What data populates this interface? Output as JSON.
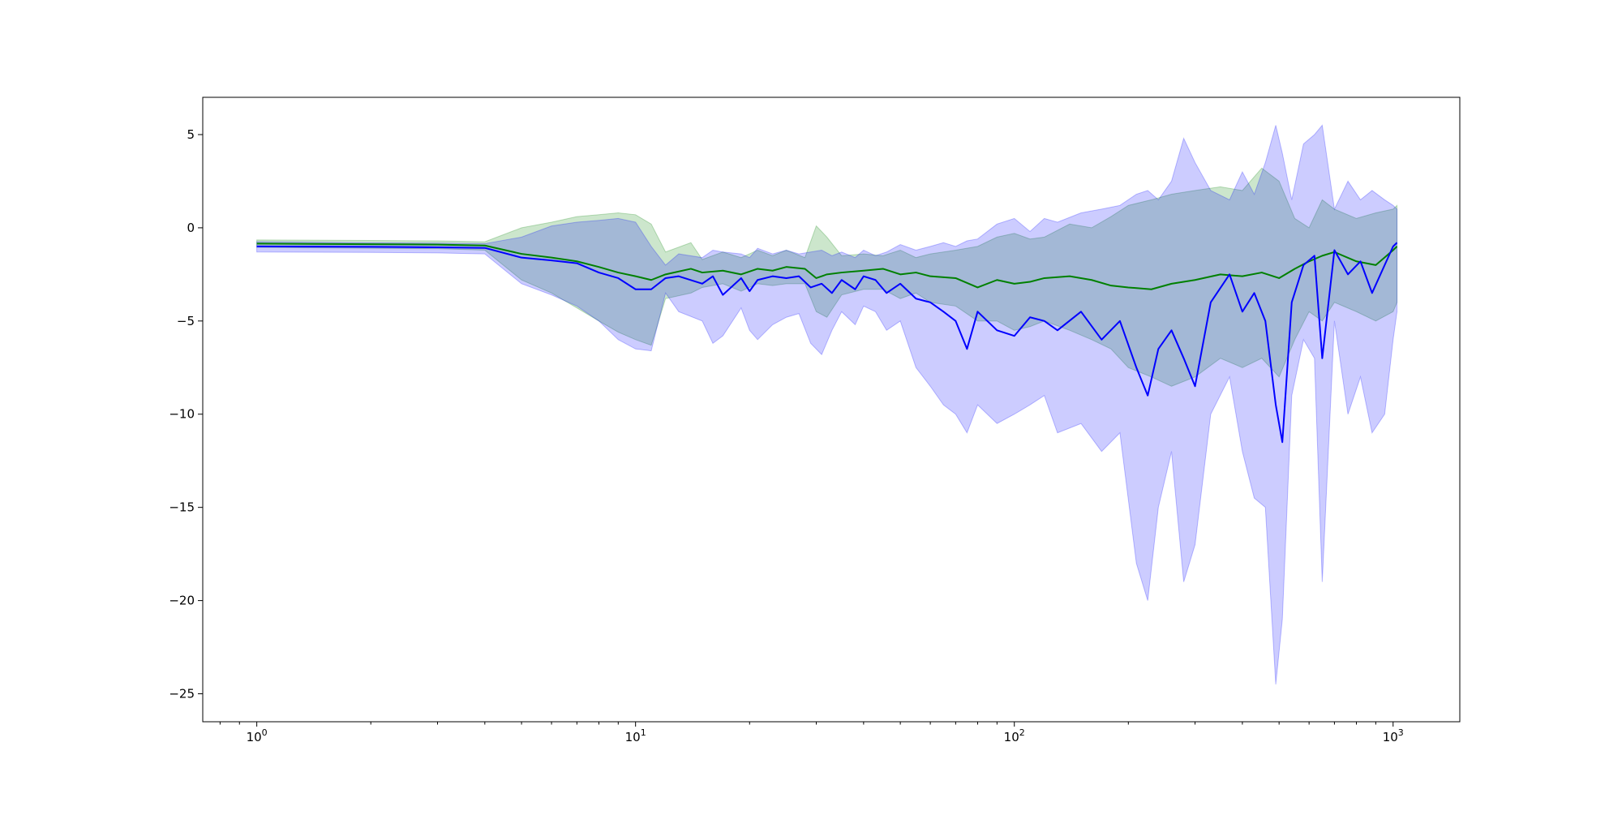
{
  "chart_data": {
    "type": "line",
    "title": "",
    "xlabel": "",
    "ylabel": "",
    "xscale": "log",
    "xlim": [
      0.72,
      1500
    ],
    "ylim": [
      -26.5,
      7
    ],
    "grid": false,
    "legend": "none",
    "x_ticks": [
      {
        "value": 1,
        "base": "10",
        "exp": "0"
      },
      {
        "value": 10,
        "base": "10",
        "exp": "1"
      },
      {
        "value": 100,
        "base": "10",
        "exp": "2"
      },
      {
        "value": 1000,
        "base": "10",
        "exp": "3"
      }
    ],
    "y_ticks": [
      {
        "value": 5,
        "label": "5"
      },
      {
        "value": 0,
        "label": "0"
      },
      {
        "value": -5,
        "label": "−5"
      },
      {
        "value": -10,
        "label": "−10"
      },
      {
        "value": -15,
        "label": "−15"
      },
      {
        "value": -20,
        "label": "−20"
      },
      {
        "value": -25,
        "label": "−25"
      }
    ],
    "series": [
      {
        "color": "#008000",
        "band_color": "#008000",
        "band_opacity": 0.2,
        "points": [
          [
            1,
            -0.85,
            -0.65,
            -1.05
          ],
          [
            2,
            -0.88,
            -0.68,
            -1.1
          ],
          [
            3,
            -0.9,
            -0.7,
            -1.12
          ],
          [
            4,
            -0.95,
            -0.75,
            -1.2
          ],
          [
            5,
            -1.4,
            0.0,
            -2.8
          ],
          [
            6,
            -1.6,
            0.3,
            -3.5
          ],
          [
            7,
            -1.8,
            0.6,
            -4.3
          ],
          [
            8,
            -2.1,
            0.7,
            -5.0
          ],
          [
            9,
            -2.4,
            0.8,
            -5.6
          ],
          [
            10,
            -2.6,
            0.7,
            -6.0
          ],
          [
            11,
            -2.8,
            0.2,
            -6.3
          ],
          [
            12,
            -2.5,
            -1.3,
            -3.8
          ],
          [
            14,
            -2.2,
            -0.8,
            -3.5
          ],
          [
            15,
            -2.4,
            -1.7,
            -3.2
          ],
          [
            17,
            -2.3,
            -1.3,
            -3.0
          ],
          [
            19,
            -2.5,
            -1.6,
            -3.4
          ],
          [
            21,
            -2.2,
            -1.2,
            -3.0
          ],
          [
            23,
            -2.3,
            -1.5,
            -3.1
          ],
          [
            25,
            -2.1,
            -1.2,
            -3.0
          ],
          [
            28,
            -2.2,
            -1.6,
            -3.0
          ],
          [
            30,
            -2.7,
            0.1,
            -4.5
          ],
          [
            32,
            -2.5,
            -0.5,
            -4.8
          ],
          [
            35,
            -2.4,
            -1.5,
            -3.6
          ],
          [
            40,
            -2.3,
            -1.4,
            -3.3
          ],
          [
            45,
            -2.2,
            -1.5,
            -3.3
          ],
          [
            50,
            -2.5,
            -1.2,
            -3.8
          ],
          [
            55,
            -2.4,
            -1.6,
            -3.5
          ],
          [
            60,
            -2.6,
            -1.4,
            -4.0
          ],
          [
            70,
            -2.7,
            -1.2,
            -4.2
          ],
          [
            80,
            -3.2,
            -1.0,
            -5.0
          ],
          [
            90,
            -2.8,
            -0.5,
            -5.0
          ],
          [
            100,
            -3.0,
            -0.3,
            -5.5
          ],
          [
            110,
            -2.9,
            -0.6,
            -5.3
          ],
          [
            120,
            -2.7,
            -0.5,
            -5.0
          ],
          [
            140,
            -2.6,
            0.2,
            -5.5
          ],
          [
            160,
            -2.8,
            0.0,
            -6.0
          ],
          [
            180,
            -3.1,
            0.6,
            -6.5
          ],
          [
            200,
            -3.2,
            1.2,
            -7.5
          ],
          [
            230,
            -3.3,
            1.5,
            -8.0
          ],
          [
            260,
            -3.0,
            1.8,
            -8.5
          ],
          [
            300,
            -2.8,
            2.0,
            -8.0
          ],
          [
            350,
            -2.5,
            2.2,
            -7.0
          ],
          [
            400,
            -2.6,
            2.0,
            -7.5
          ],
          [
            450,
            -2.4,
            3.2,
            -7.0
          ],
          [
            500,
            -2.7,
            2.5,
            -8.0
          ],
          [
            550,
            -2.2,
            0.5,
            -6.0
          ],
          [
            600,
            -1.8,
            0.0,
            -4.5
          ],
          [
            650,
            -1.5,
            1.5,
            -5.0
          ],
          [
            700,
            -1.3,
            1.0,
            -4.0
          ],
          [
            800,
            -1.8,
            0.5,
            -4.5
          ],
          [
            900,
            -2.0,
            0.8,
            -5.0
          ],
          [
            1000,
            -1.2,
            1.0,
            -4.5
          ],
          [
            1024,
            -1.0,
            1.2,
            -4.0
          ]
        ]
      },
      {
        "color": "#0000ff",
        "band_color": "#0000ff",
        "band_opacity": 0.2,
        "points": [
          [
            1,
            -1.0,
            -0.75,
            -1.3
          ],
          [
            2,
            -1.02,
            -0.8,
            -1.32
          ],
          [
            3,
            -1.05,
            -0.82,
            -1.35
          ],
          [
            4,
            -1.08,
            -0.85,
            -1.4
          ],
          [
            5,
            -1.6,
            -0.5,
            -3.0
          ],
          [
            6,
            -1.75,
            0.1,
            -3.6
          ],
          [
            7,
            -1.9,
            0.3,
            -4.2
          ],
          [
            8,
            -2.4,
            0.4,
            -5.0
          ],
          [
            9,
            -2.7,
            0.5,
            -6.0
          ],
          [
            10,
            -3.3,
            0.3,
            -6.5
          ],
          [
            11,
            -3.3,
            -1.0,
            -6.6
          ],
          [
            12,
            -2.7,
            -2.0,
            -3.5
          ],
          [
            13,
            -2.6,
            -1.4,
            -4.5
          ],
          [
            15,
            -3.0,
            -1.6,
            -5.0
          ],
          [
            16,
            -2.6,
            -1.2,
            -6.2
          ],
          [
            17,
            -3.6,
            -1.3,
            -5.8
          ],
          [
            19,
            -2.7,
            -1.4,
            -4.3
          ],
          [
            20,
            -3.4,
            -1.6,
            -5.5
          ],
          [
            21,
            -2.8,
            -1.1,
            -6.0
          ],
          [
            23,
            -2.6,
            -1.4,
            -5.2
          ],
          [
            25,
            -2.7,
            -1.2,
            -4.8
          ],
          [
            27,
            -2.6,
            -1.4,
            -4.6
          ],
          [
            29,
            -3.2,
            -1.3,
            -6.2
          ],
          [
            31,
            -3.0,
            -1.2,
            -6.8
          ],
          [
            33,
            -3.5,
            -1.5,
            -5.5
          ],
          [
            35,
            -2.8,
            -1.3,
            -4.5
          ],
          [
            38,
            -3.3,
            -1.6,
            -5.2
          ],
          [
            40,
            -2.6,
            -1.2,
            -4.2
          ],
          [
            43,
            -2.8,
            -1.5,
            -4.5
          ],
          [
            46,
            -3.5,
            -1.3,
            -5.5
          ],
          [
            50,
            -3.0,
            -0.9,
            -5.0
          ],
          [
            55,
            -3.8,
            -1.2,
            -7.5
          ],
          [
            60,
            -4.0,
            -1.0,
            -8.5
          ],
          [
            65,
            -4.5,
            -0.8,
            -9.5
          ],
          [
            70,
            -5.0,
            -1.0,
            -10.0
          ],
          [
            75,
            -6.5,
            -0.7,
            -11.0
          ],
          [
            80,
            -4.5,
            -0.6,
            -9.5
          ],
          [
            90,
            -5.5,
            0.2,
            -10.5
          ],
          [
            100,
            -5.8,
            0.5,
            -10.0
          ],
          [
            110,
            -4.8,
            -0.2,
            -9.5
          ],
          [
            120,
            -5.0,
            0.5,
            -9.0
          ],
          [
            130,
            -5.5,
            0.3,
            -11.0
          ],
          [
            150,
            -4.5,
            0.8,
            -10.5
          ],
          [
            170,
            -6.0,
            1.0,
            -12.0
          ],
          [
            190,
            -5.0,
            1.2,
            -11.0
          ],
          [
            210,
            -7.5,
            1.8,
            -18.0
          ],
          [
            225,
            -9.0,
            2.0,
            -20.0
          ],
          [
            240,
            -6.5,
            1.5,
            -15.0
          ],
          [
            260,
            -5.5,
            2.5,
            -12.0
          ],
          [
            280,
            -7.0,
            4.8,
            -19.0
          ],
          [
            300,
            -8.5,
            3.5,
            -17.0
          ],
          [
            330,
            -4.0,
            2.0,
            -10.0
          ],
          [
            370,
            -2.5,
            1.5,
            -8.0
          ],
          [
            400,
            -4.5,
            3.0,
            -12.0
          ],
          [
            430,
            -3.5,
            1.8,
            -14.5
          ],
          [
            460,
            -5.0,
            3.5,
            -15.0
          ],
          [
            490,
            -9.5,
            5.5,
            -24.5
          ],
          [
            510,
            -11.5,
            4.0,
            -21.0
          ],
          [
            540,
            -4.0,
            1.5,
            -9.0
          ],
          [
            580,
            -2.0,
            4.5,
            -6.0
          ],
          [
            620,
            -1.5,
            5.0,
            -7.0
          ],
          [
            650,
            -7.0,
            5.5,
            -19.0
          ],
          [
            700,
            -1.2,
            1.0,
            -5.0
          ],
          [
            760,
            -2.5,
            2.5,
            -10.0
          ],
          [
            820,
            -1.8,
            1.5,
            -8.0
          ],
          [
            880,
            -3.5,
            2.0,
            -11.0
          ],
          [
            950,
            -2.0,
            1.5,
            -10.0
          ],
          [
            1000,
            -1.0,
            1.2,
            -6.0
          ],
          [
            1024,
            -0.8,
            1.0,
            -4.5
          ]
        ]
      }
    ]
  }
}
